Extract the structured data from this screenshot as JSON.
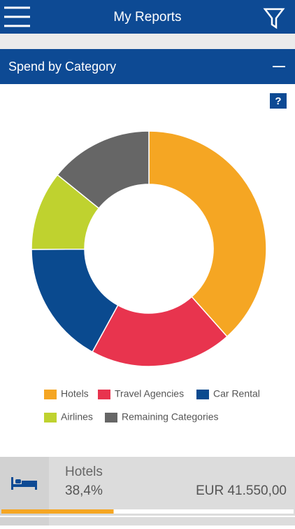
{
  "header": {
    "title": "My Reports"
  },
  "section": {
    "title": "Spend by Category",
    "help": "?"
  },
  "chart_data": {
    "type": "pie",
    "donut": true,
    "categories": [
      "Hotels",
      "Travel Agencies",
      "Car Rental",
      "Airlines",
      "Remaining Categories"
    ],
    "values": [
      38.4,
      19.6,
      16.9,
      10.9,
      14.2
    ],
    "colors": [
      "#f5a623",
      "#e8344e",
      "#0a4a8f",
      "#bfd22f",
      "#666666"
    ]
  },
  "detail": {
    "name": "Hotels",
    "share": {
      "value": 38.4,
      "label": "38,4%"
    },
    "amount": "EUR 41.550,00",
    "color": "#f5a623"
  }
}
